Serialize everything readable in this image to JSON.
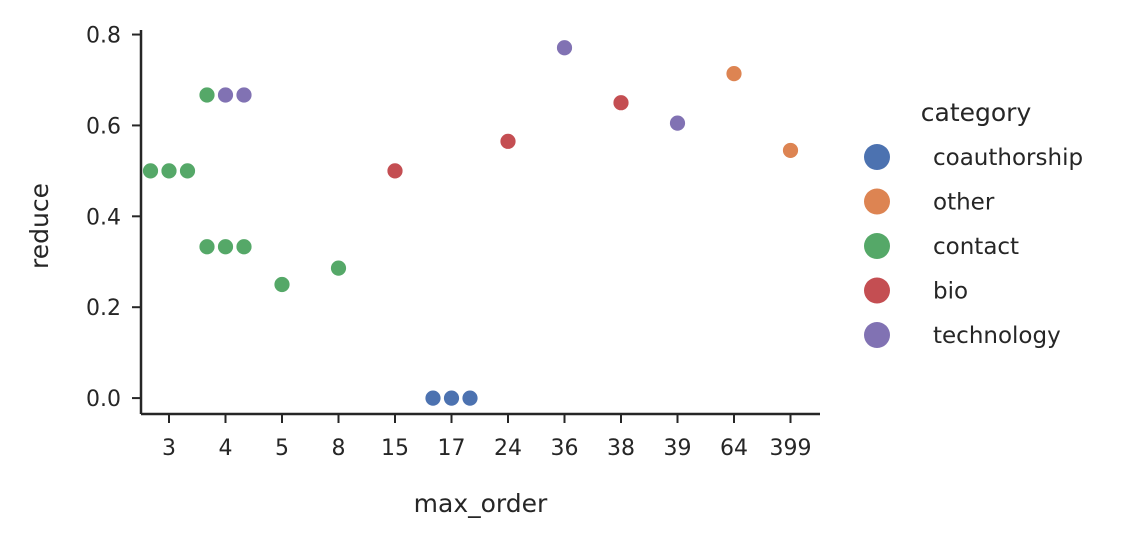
{
  "chart_data": {
    "type": "scatter",
    "title": "",
    "xlabel": "max_order",
    "ylabel": "reduce",
    "x_categories": [
      "3",
      "4",
      "5",
      "8",
      "15",
      "17",
      "24",
      "36",
      "38",
      "39",
      "64",
      "399"
    ],
    "ylim": [
      -0.035,
      0.81
    ],
    "y_ticks": [
      0.0,
      0.2,
      0.4,
      0.6,
      0.8
    ],
    "y_tick_labels": [
      "0.0",
      "0.2",
      "0.4",
      "0.6",
      "0.8"
    ],
    "grid": false,
    "legend": {
      "title": "category",
      "placement": "right"
    },
    "series": [
      {
        "name": "coauthorship",
        "color": "#4c72b0",
        "points": [
          {
            "x": "17",
            "y": 0.0
          },
          {
            "x": "17",
            "y": 0.0
          },
          {
            "x": "17",
            "y": 0.0
          }
        ]
      },
      {
        "name": "other",
        "color": "#dd8452",
        "points": [
          {
            "x": "64",
            "y": 0.714
          },
          {
            "x": "399",
            "y": 0.545
          }
        ]
      },
      {
        "name": "contact",
        "color": "#55a868",
        "points": [
          {
            "x": "3",
            "y": 0.5
          },
          {
            "x": "3",
            "y": 0.5
          },
          {
            "x": "3",
            "y": 0.5
          },
          {
            "x": "4",
            "y": 0.667
          },
          {
            "x": "4",
            "y": 0.333
          },
          {
            "x": "4",
            "y": 0.333
          },
          {
            "x": "4",
            "y": 0.333
          },
          {
            "x": "5",
            "y": 0.25
          },
          {
            "x": "8",
            "y": 0.286
          }
        ]
      },
      {
        "name": "bio",
        "color": "#c44e52",
        "points": [
          {
            "x": "15",
            "y": 0.5
          },
          {
            "x": "24",
            "y": 0.565
          },
          {
            "x": "38",
            "y": 0.65
          }
        ]
      },
      {
        "name": "technology",
        "color": "#8172b3",
        "points": [
          {
            "x": "4",
            "y": 0.667
          },
          {
            "x": "4",
            "y": 0.667
          },
          {
            "x": "36",
            "y": 0.771
          },
          {
            "x": "39",
            "y": 0.605
          }
        ]
      }
    ]
  }
}
